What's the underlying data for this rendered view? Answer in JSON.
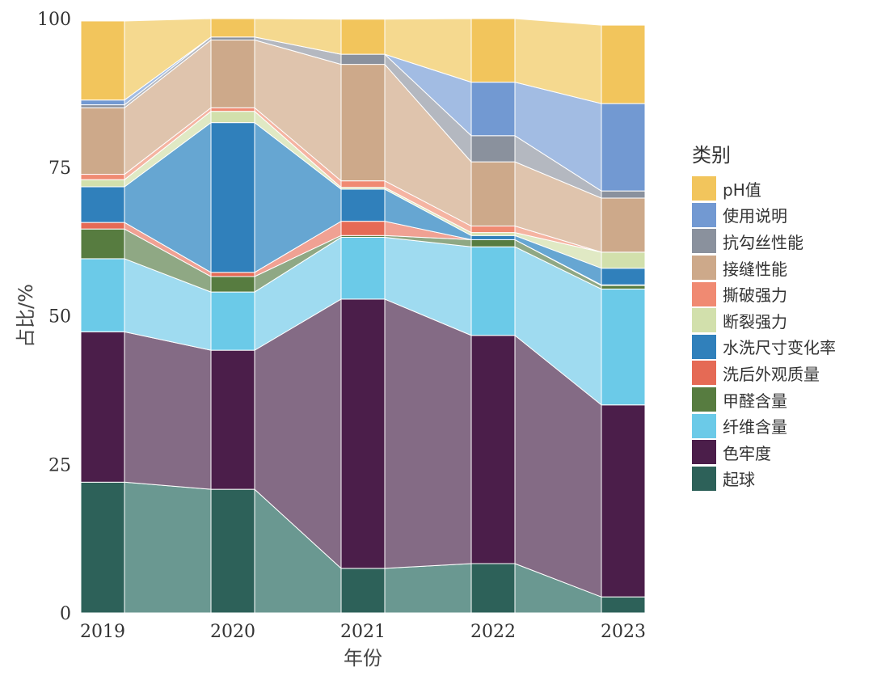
{
  "chart_data": {
    "type": "bar",
    "subtype": "stacked-100-alluvial",
    "title": "",
    "xlabel": "年份",
    "ylabel": "占比/%",
    "ylim": [
      0,
      100
    ],
    "yticks": [
      "0",
      "25",
      "50",
      "75",
      "100"
    ],
    "categories": [
      "2019",
      "2020",
      "2021",
      "2022",
      "2023"
    ],
    "legend": {
      "title": "类别",
      "position": "right"
    },
    "series": [
      {
        "name": "起球",
        "color": "#2d6159",
        "flow_color": "#6a9891",
        "values": [
          22.0,
          20.8,
          7.5,
          8.3,
          2.7
        ]
      },
      {
        "name": "色牢度",
        "color": "#4b1e4a",
        "flow_color": "#846b85",
        "values": [
          25.3,
          23.4,
          45.3,
          38.4,
          32.3
        ]
      },
      {
        "name": "纤维含量",
        "color": "#6bcae8",
        "flow_color": "#9fdbf0",
        "values": [
          12.3,
          9.8,
          10.4,
          14.9,
          19.5
        ]
      },
      {
        "name": "甲醛含量",
        "color": "#577c40",
        "flow_color": "#8fa884",
        "values": [
          5.0,
          2.6,
          0.3,
          1.2,
          0.6
        ]
      },
      {
        "name": "洗后外观质量",
        "color": "#e56a55",
        "flow_color": "#f0a193",
        "values": [
          1.1,
          0.7,
          2.4,
          0.0,
          0.1
        ]
      },
      {
        "name": "水洗尺寸变化率",
        "color": "#3080bb",
        "flow_color": "#66a6d2",
        "values": [
          6.0,
          25.2,
          5.4,
          0.7,
          2.8
        ]
      },
      {
        "name": "断裂强力",
        "color": "#d2e0ac",
        "flow_color": "#e0e9c4",
        "values": [
          1.2,
          1.9,
          0.3,
          0.5,
          2.7
        ]
      },
      {
        "name": "撕破强力",
        "color": "#f08a72",
        "flow_color": "#f5b4a2",
        "values": [
          0.9,
          0.6,
          1.1,
          1.1,
          0.0
        ]
      },
      {
        "name": "接缝性能",
        "color": "#cda98a",
        "flow_color": "#dfc4ad",
        "values": [
          11.2,
          11.4,
          19.6,
          10.8,
          9.1
        ]
      },
      {
        "name": "抗勾丝性能",
        "color": "#8a919d",
        "flow_color": "#b4b8c0",
        "values": [
          0.5,
          0.5,
          1.7,
          4.4,
          1.2
        ]
      },
      {
        "name": "使用说明",
        "color": "#7299d2",
        "flow_color": "#a2bce3",
        "values": [
          0.8,
          0.0,
          0.0,
          9.0,
          14.7
        ]
      },
      {
        "name": "pH值",
        "color": "#f2c55c",
        "flow_color": "#f5d98f",
        "values": [
          13.3,
          3.1,
          5.9,
          10.7,
          13.2
        ]
      }
    ]
  }
}
